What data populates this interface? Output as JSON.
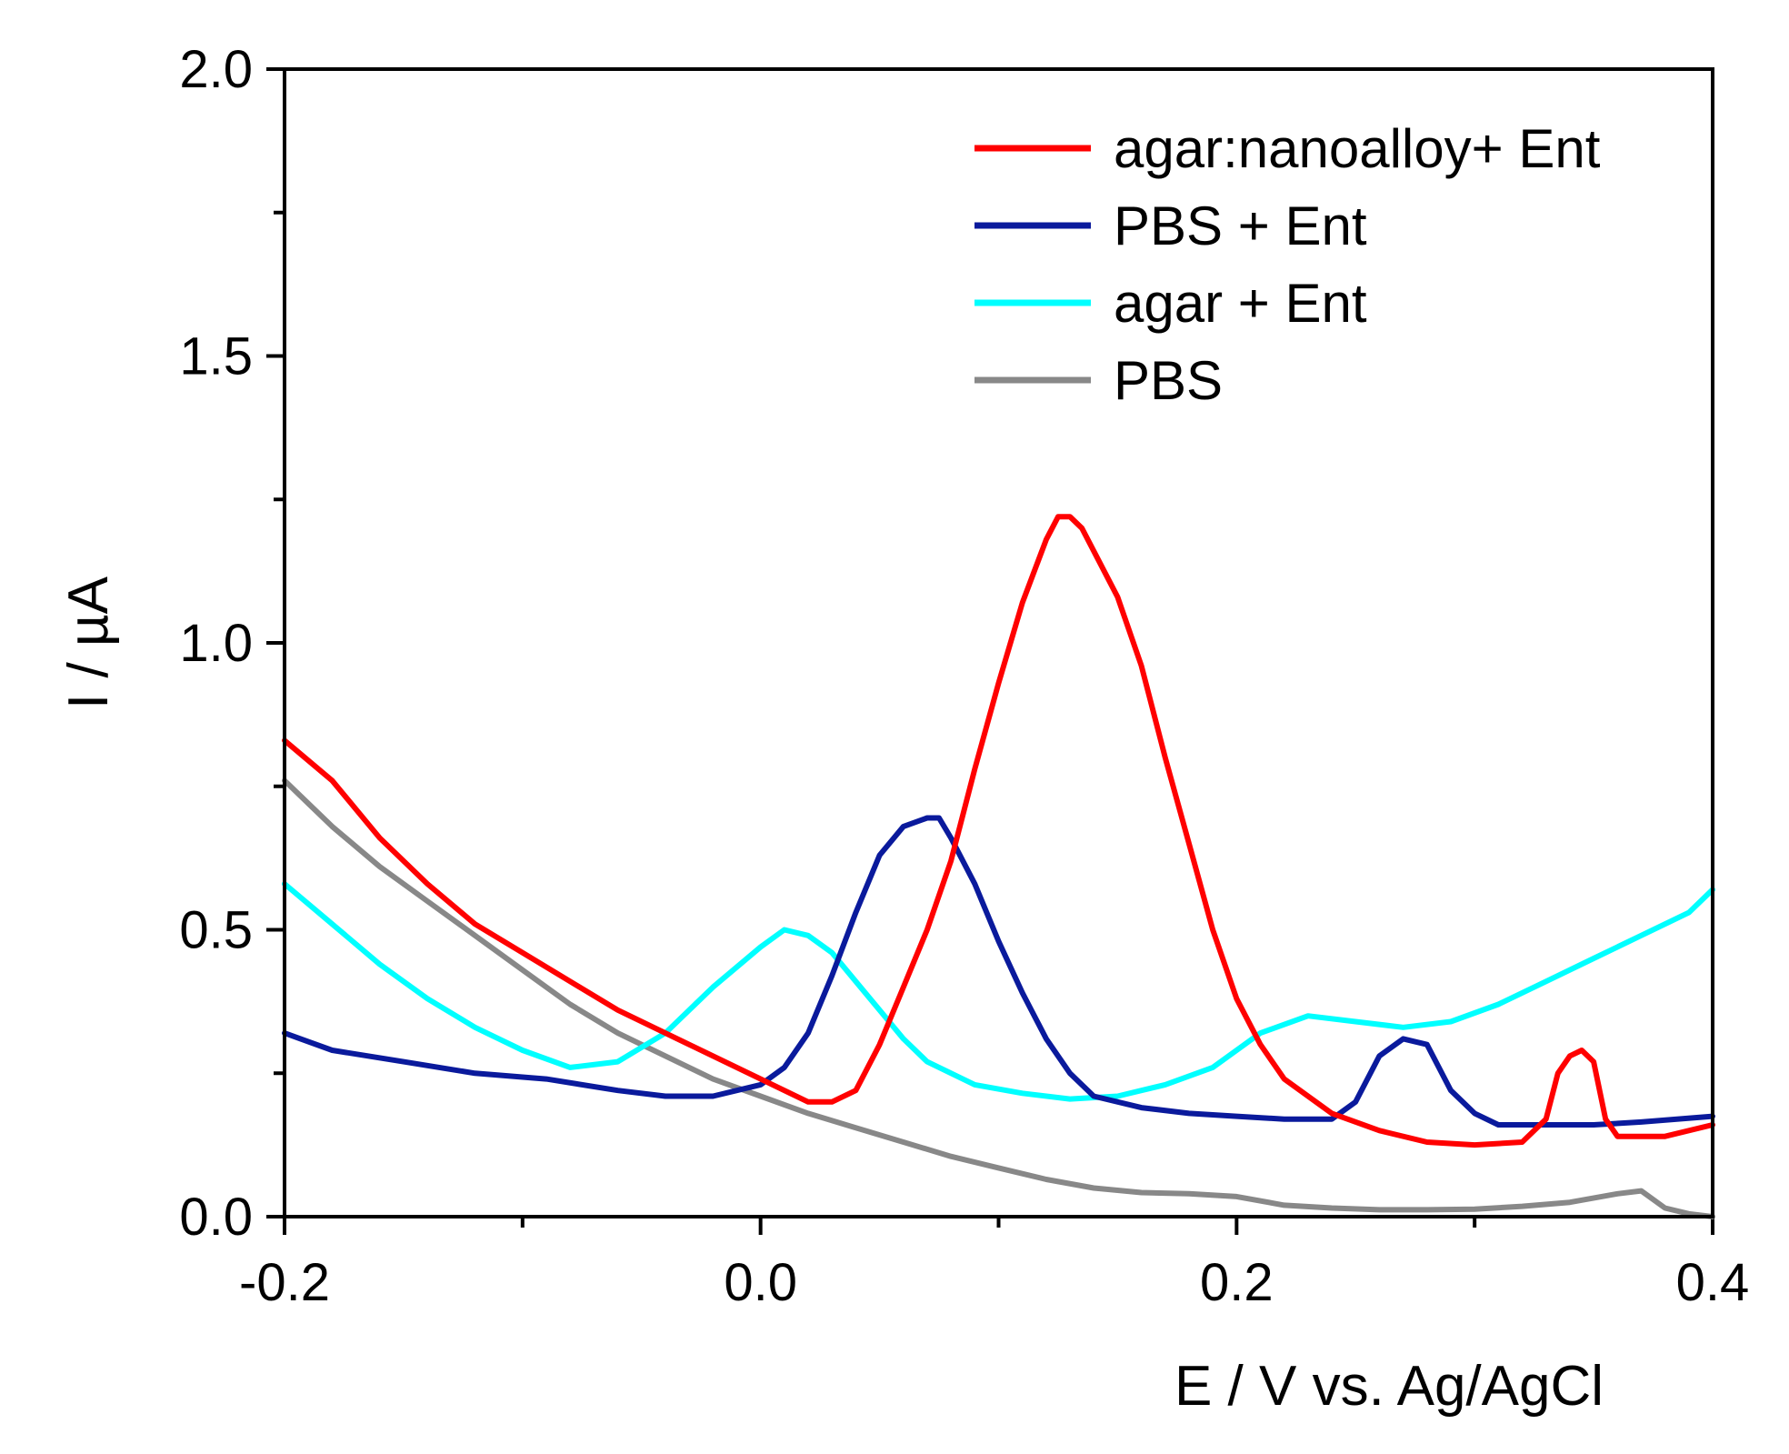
{
  "chart_data": {
    "type": "line",
    "title": "",
    "xlabel": "E / V vs. Ag/AgCl",
    "ylabel": "I / µA",
    "xlim": [
      -0.2,
      0.4
    ],
    "ylim": [
      0.0,
      2.0
    ],
    "x_ticks": [
      -0.2,
      0.0,
      0.2,
      0.4
    ],
    "x_tick_labels": [
      "-0.2",
      "0.0",
      "0.2",
      "0.4"
    ],
    "y_ticks": [
      0.0,
      0.5,
      1.0,
      1.5,
      2.0
    ],
    "y_tick_labels": [
      "0.0",
      "0.5",
      "1.0",
      "1.5",
      "2.0"
    ],
    "grid": false,
    "legend_position": "top-right",
    "series": [
      {
        "name": "agar:nanoalloy+ Ent",
        "color": "#ff0000",
        "points": [
          [
            -0.2,
            0.83
          ],
          [
            -0.18,
            0.76
          ],
          [
            -0.16,
            0.66
          ],
          [
            -0.14,
            0.58
          ],
          [
            -0.12,
            0.51
          ],
          [
            -0.1,
            0.46
          ],
          [
            -0.08,
            0.41
          ],
          [
            -0.06,
            0.36
          ],
          [
            -0.04,
            0.32
          ],
          [
            -0.02,
            0.28
          ],
          [
            0.0,
            0.24
          ],
          [
            0.01,
            0.22
          ],
          [
            0.02,
            0.2
          ],
          [
            0.03,
            0.2
          ],
          [
            0.04,
            0.22
          ],
          [
            0.05,
            0.3
          ],
          [
            0.06,
            0.4
          ],
          [
            0.07,
            0.5
          ],
          [
            0.08,
            0.62
          ],
          [
            0.09,
            0.78
          ],
          [
            0.1,
            0.93
          ],
          [
            0.11,
            1.07
          ],
          [
            0.12,
            1.18
          ],
          [
            0.125,
            1.22
          ],
          [
            0.13,
            1.22
          ],
          [
            0.135,
            1.2
          ],
          [
            0.15,
            1.08
          ],
          [
            0.16,
            0.96
          ],
          [
            0.17,
            0.8
          ],
          [
            0.18,
            0.65
          ],
          [
            0.19,
            0.5
          ],
          [
            0.2,
            0.38
          ],
          [
            0.21,
            0.3
          ],
          [
            0.22,
            0.24
          ],
          [
            0.24,
            0.18
          ],
          [
            0.26,
            0.15
          ],
          [
            0.28,
            0.13
          ],
          [
            0.3,
            0.125
          ],
          [
            0.32,
            0.13
          ],
          [
            0.33,
            0.17
          ],
          [
            0.335,
            0.25
          ],
          [
            0.34,
            0.28
          ],
          [
            0.345,
            0.29
          ],
          [
            0.35,
            0.27
          ],
          [
            0.355,
            0.17
          ],
          [
            0.36,
            0.14
          ],
          [
            0.38,
            0.14
          ],
          [
            0.4,
            0.16
          ]
        ]
      },
      {
        "name": "PBS + Ent",
        "color": "#0a1a9c",
        "points": [
          [
            -0.2,
            0.32
          ],
          [
            -0.18,
            0.29
          ],
          [
            -0.15,
            0.27
          ],
          [
            -0.12,
            0.25
          ],
          [
            -0.09,
            0.24
          ],
          [
            -0.06,
            0.22
          ],
          [
            -0.04,
            0.21
          ],
          [
            -0.02,
            0.21
          ],
          [
            0.0,
            0.23
          ],
          [
            0.01,
            0.26
          ],
          [
            0.02,
            0.32
          ],
          [
            0.03,
            0.42
          ],
          [
            0.04,
            0.53
          ],
          [
            0.05,
            0.63
          ],
          [
            0.06,
            0.68
          ],
          [
            0.07,
            0.695
          ],
          [
            0.075,
            0.695
          ],
          [
            0.08,
            0.66
          ],
          [
            0.09,
            0.58
          ],
          [
            0.1,
            0.48
          ],
          [
            0.11,
            0.39
          ],
          [
            0.12,
            0.31
          ],
          [
            0.13,
            0.25
          ],
          [
            0.14,
            0.21
          ],
          [
            0.16,
            0.19
          ],
          [
            0.18,
            0.18
          ],
          [
            0.2,
            0.175
          ],
          [
            0.22,
            0.17
          ],
          [
            0.24,
            0.17
          ],
          [
            0.25,
            0.2
          ],
          [
            0.26,
            0.28
          ],
          [
            0.27,
            0.31
          ],
          [
            0.28,
            0.3
          ],
          [
            0.29,
            0.22
          ],
          [
            0.3,
            0.18
          ],
          [
            0.31,
            0.16
          ],
          [
            0.33,
            0.16
          ],
          [
            0.35,
            0.16
          ],
          [
            0.37,
            0.165
          ],
          [
            0.4,
            0.175
          ]
        ]
      },
      {
        "name": "agar + Ent",
        "color": "#00ffff",
        "points": [
          [
            -0.2,
            0.58
          ],
          [
            -0.18,
            0.51
          ],
          [
            -0.16,
            0.44
          ],
          [
            -0.14,
            0.38
          ],
          [
            -0.12,
            0.33
          ],
          [
            -0.1,
            0.29
          ],
          [
            -0.08,
            0.26
          ],
          [
            -0.06,
            0.27
          ],
          [
            -0.04,
            0.32
          ],
          [
            -0.02,
            0.4
          ],
          [
            0.0,
            0.47
          ],
          [
            0.01,
            0.5
          ],
          [
            0.02,
            0.49
          ],
          [
            0.03,
            0.46
          ],
          [
            0.04,
            0.41
          ],
          [
            0.05,
            0.36
          ],
          [
            0.06,
            0.31
          ],
          [
            0.07,
            0.27
          ],
          [
            0.09,
            0.23
          ],
          [
            0.11,
            0.215
          ],
          [
            0.13,
            0.205
          ],
          [
            0.15,
            0.21
          ],
          [
            0.17,
            0.23
          ],
          [
            0.19,
            0.26
          ],
          [
            0.21,
            0.32
          ],
          [
            0.23,
            0.35
          ],
          [
            0.25,
            0.34
          ],
          [
            0.27,
            0.33
          ],
          [
            0.29,
            0.34
          ],
          [
            0.31,
            0.37
          ],
          [
            0.33,
            0.41
          ],
          [
            0.35,
            0.45
          ],
          [
            0.37,
            0.49
          ],
          [
            0.39,
            0.53
          ],
          [
            0.4,
            0.57
          ]
        ]
      },
      {
        "name": "PBS",
        "color": "#888888",
        "points": [
          [
            -0.2,
            0.76
          ],
          [
            -0.18,
            0.68
          ],
          [
            -0.16,
            0.61
          ],
          [
            -0.14,
            0.55
          ],
          [
            -0.12,
            0.49
          ],
          [
            -0.1,
            0.43
          ],
          [
            -0.08,
            0.37
          ],
          [
            -0.06,
            0.32
          ],
          [
            -0.04,
            0.28
          ],
          [
            -0.02,
            0.24
          ],
          [
            0.0,
            0.21
          ],
          [
            0.02,
            0.18
          ],
          [
            0.04,
            0.155
          ],
          [
            0.06,
            0.13
          ],
          [
            0.08,
            0.105
          ],
          [
            0.1,
            0.085
          ],
          [
            0.12,
            0.065
          ],
          [
            0.14,
            0.05
          ],
          [
            0.16,
            0.042
          ],
          [
            0.18,
            0.04
          ],
          [
            0.2,
            0.035
          ],
          [
            0.22,
            0.02
          ],
          [
            0.24,
            0.015
          ],
          [
            0.26,
            0.012
          ],
          [
            0.28,
            0.012
          ],
          [
            0.3,
            0.013
          ],
          [
            0.32,
            0.018
          ],
          [
            0.34,
            0.025
          ],
          [
            0.36,
            0.04
          ],
          [
            0.37,
            0.045
          ],
          [
            0.38,
            0.015
          ],
          [
            0.39,
            0.005
          ],
          [
            0.4,
            0.0
          ]
        ]
      }
    ]
  }
}
